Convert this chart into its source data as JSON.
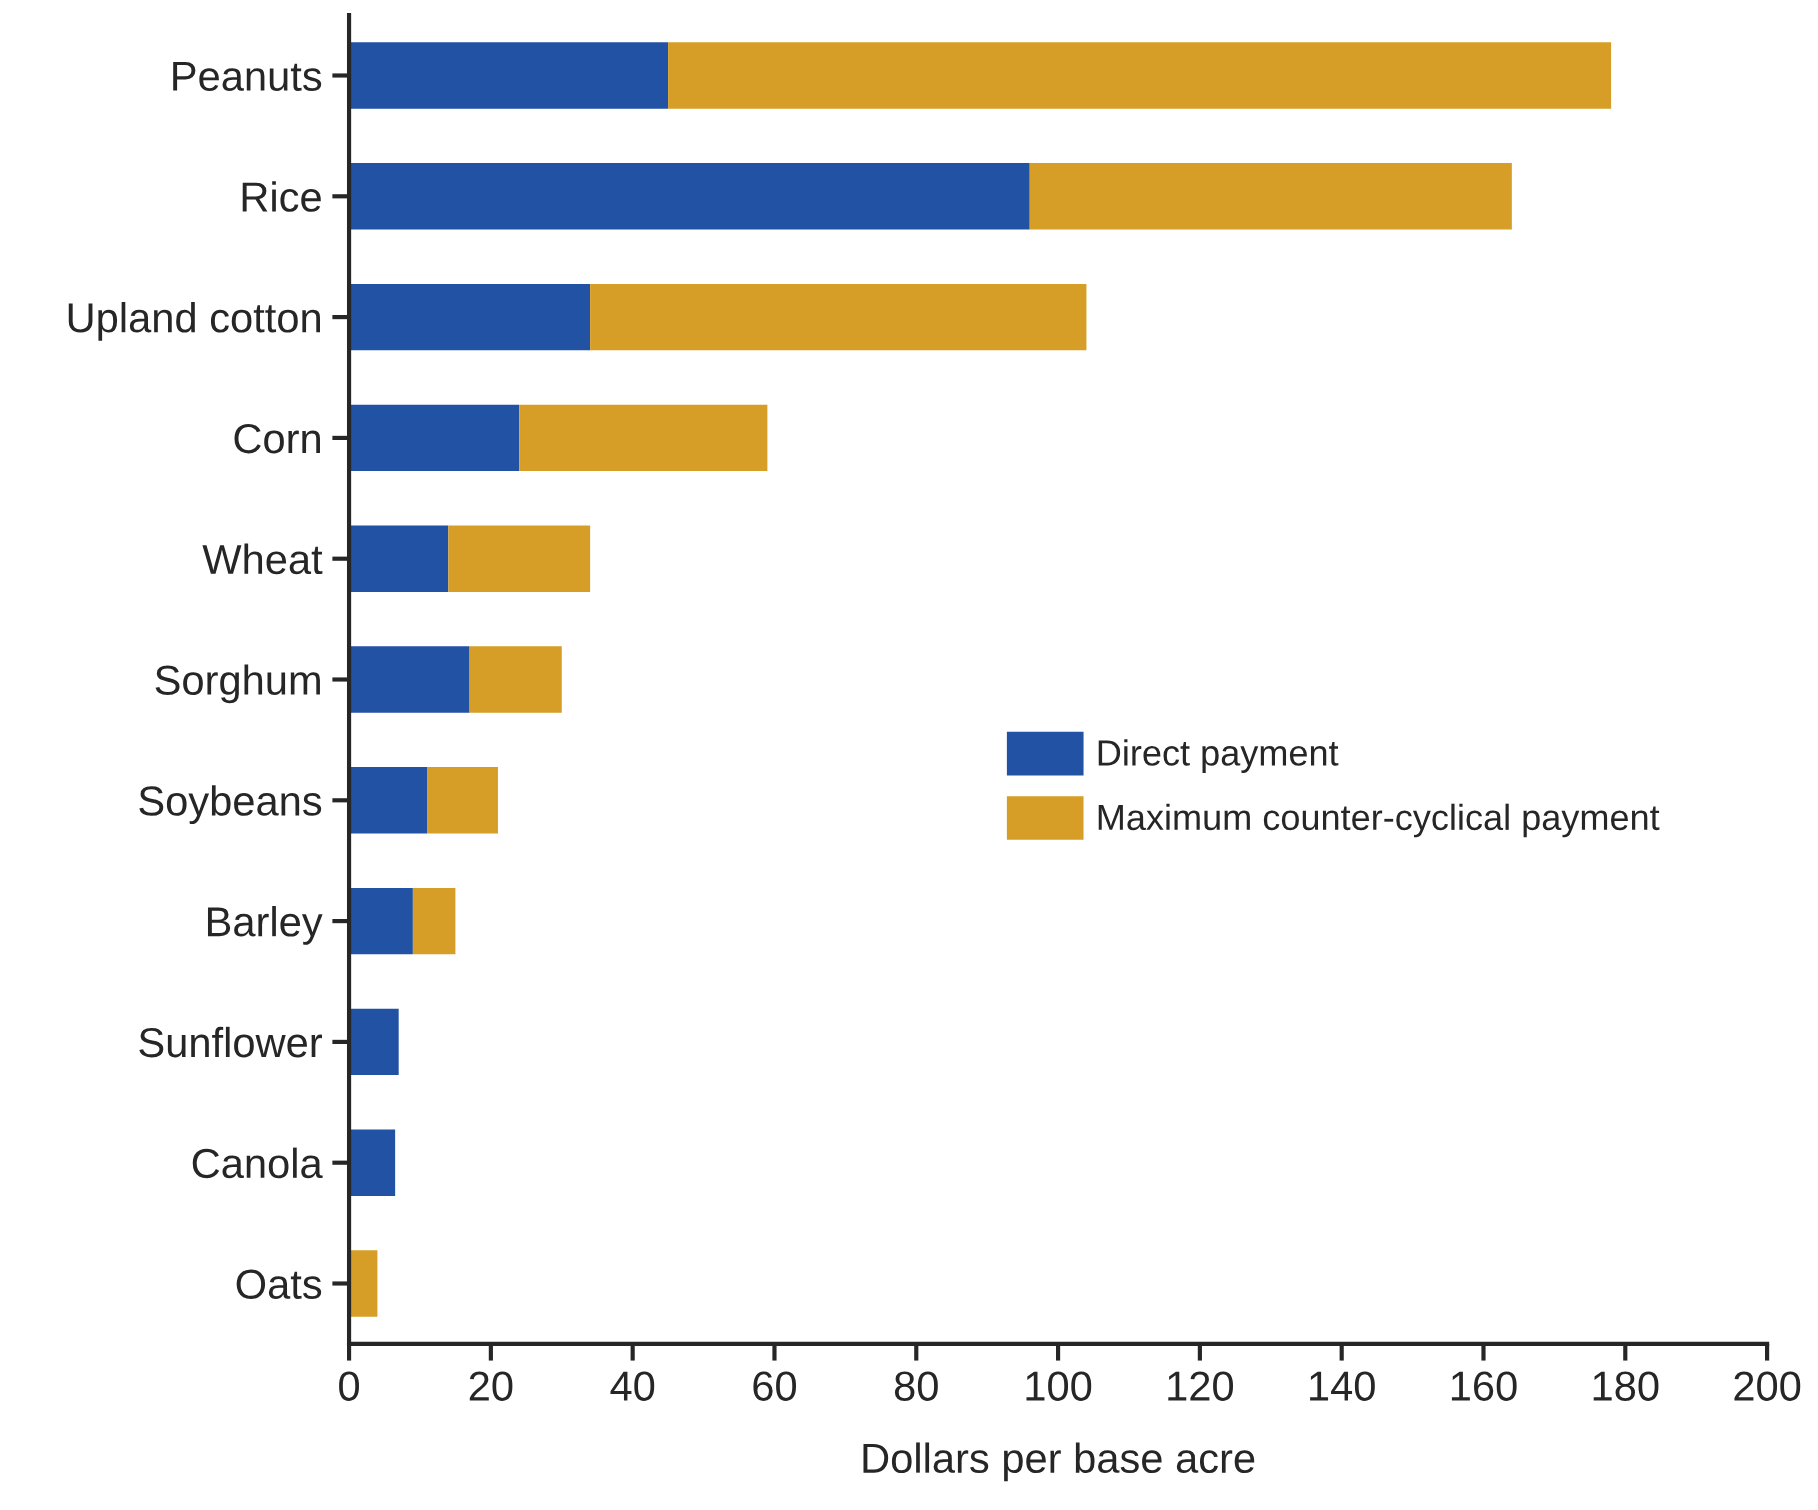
{
  "chart_data": {
    "type": "bar",
    "orientation": "horizontal",
    "stacked": true,
    "categories": [
      "Peanuts",
      "Rice",
      "Upland cotton",
      "Corn",
      "Wheat",
      "Sorghum",
      "Soybeans",
      "Barley",
      "Sunflower",
      "Canola",
      "Oats"
    ],
    "series": [
      {
        "name": "Direct payment",
        "color": "#2152a3",
        "values": [
          45,
          96,
          34,
          24,
          14,
          17,
          11,
          9,
          7,
          6.5,
          0
        ]
      },
      {
        "name": "Maximum counter-cyclical payment",
        "color": "#d69e26",
        "values": [
          133,
          68,
          70,
          35,
          20,
          13,
          10,
          6,
          0,
          0,
          4
        ]
      }
    ],
    "xlabel": "Dollars per base acre",
    "xlim": [
      0,
      200
    ],
    "xticks": [
      0,
      20,
      40,
      60,
      80,
      100,
      120,
      140,
      160,
      180,
      200
    ],
    "legend": "right",
    "grid": false
  }
}
